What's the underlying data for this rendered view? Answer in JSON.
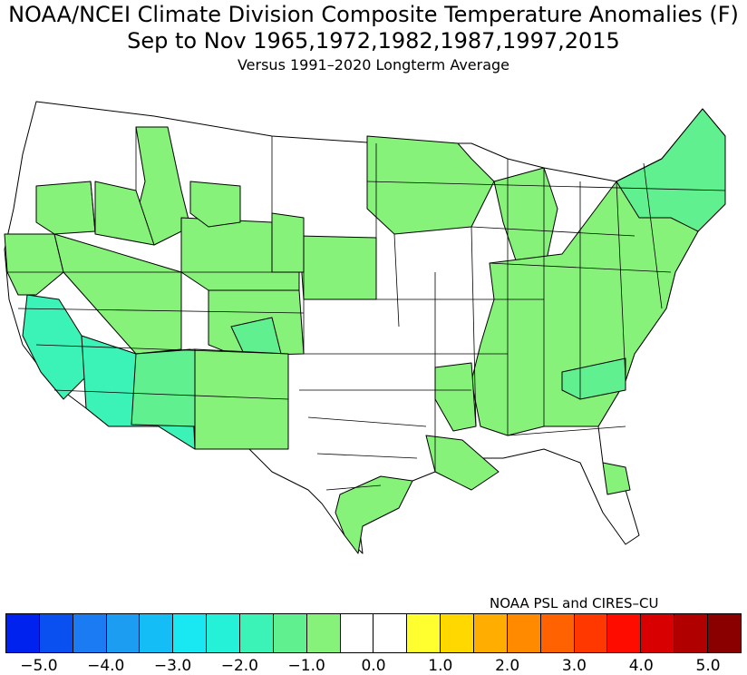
{
  "title": {
    "line1": "NOAA/NCEI Climate Division Composite Temperature Anomalies (F)",
    "line2": "Sep to Nov  1965,1972,1982,1987,1997,2015",
    "line3": "Versus 1991–2020 Longterm Average"
  },
  "credit": "NOAA PSL and CIRES–CU",
  "legend": {
    "colors": [
      "#0022ee",
      "#0a4ff0",
      "#1a7bf2",
      "#1d9df2",
      "#14bdf5",
      "#19e8f2",
      "#24f1d7",
      "#3bf3b6",
      "#61f08f",
      "#86f27a",
      "#ffffff",
      "#ffffff",
      "#ffff30",
      "#ffd800",
      "#ffae00",
      "#ff8a00",
      "#ff6200",
      "#ff3800",
      "#ff0c00",
      "#d80000",
      "#b00000",
      "#8a0000"
    ],
    "tick_labels": [
      "−5.0",
      "−4.0",
      "−3.0",
      "−2.0",
      "−1.0",
      "0.0",
      "1.0",
      "2.0",
      "3.0",
      "4.0",
      "5.0"
    ]
  },
  "map_colors": {
    "light_green": "#86f27a",
    "medium_green": "#61f08f",
    "teal": "#3bf3b6",
    "none": "#ffffff"
  }
}
